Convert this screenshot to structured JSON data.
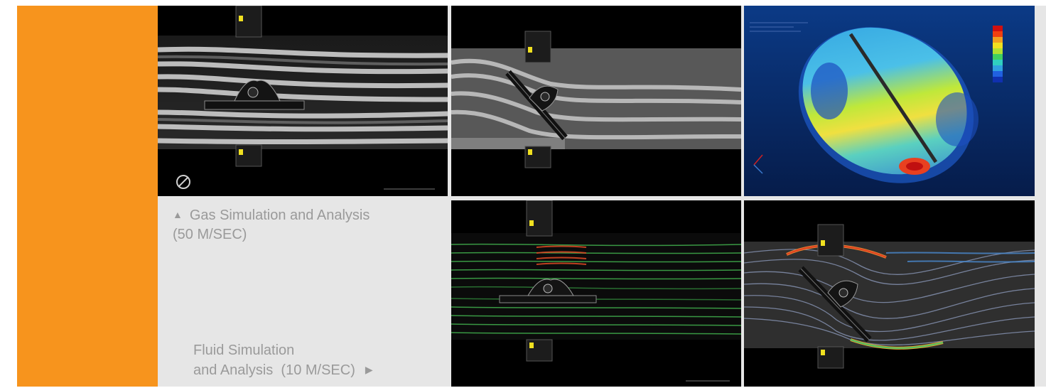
{
  "colors": {
    "accent": "#f7941d",
    "panel_background": "#e6e6e6",
    "caption_text": "#9a9a9a"
  },
  "captions": {
    "gas": {
      "marker": "▲",
      "line1": "Gas Simulation and Analysis",
      "line2": "(50 M/SEC)"
    },
    "fluid": {
      "line1": "Fluid Simulation",
      "line2": "and Analysis  (10 M/SEC)",
      "marker": "▶"
    }
  },
  "images": [
    {
      "name": "gas-simulation-horizontal-disc",
      "icon": "no-entry-icon"
    },
    {
      "name": "gas-simulation-tilted-disc"
    },
    {
      "name": "stress-analysis-contour-plot"
    },
    {
      "name": "fluid-simulation-horizontal-disc"
    },
    {
      "name": "fluid-simulation-tilted-disc"
    }
  ]
}
